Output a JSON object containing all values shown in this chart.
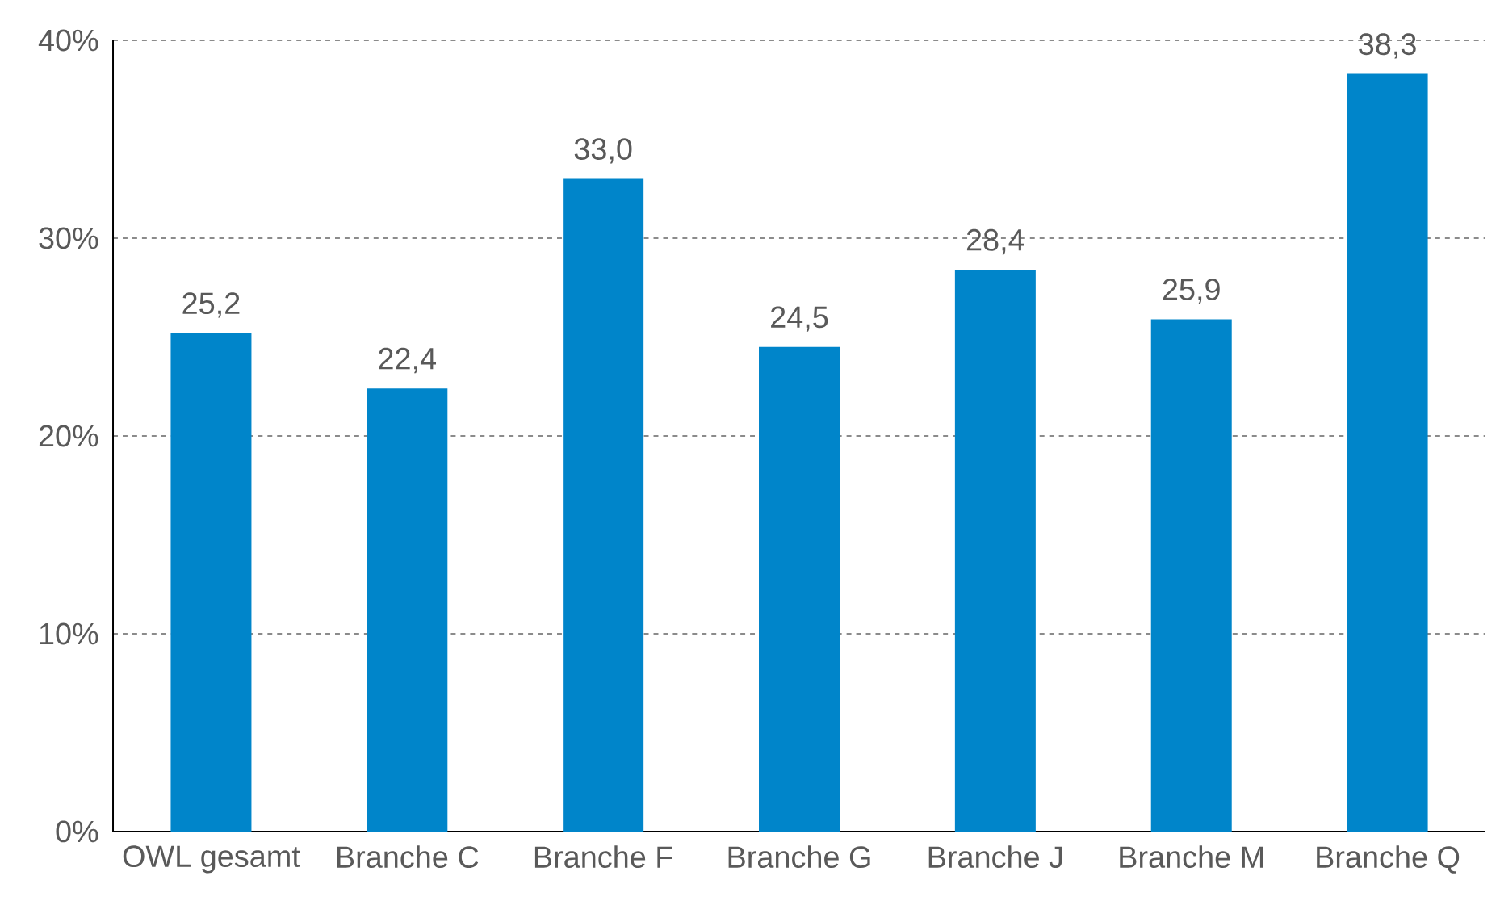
{
  "chart_data": {
    "type": "bar",
    "categories": [
      "OWL gesamt",
      "Branche C",
      "Branche F",
      "Branche G",
      "Branche J",
      "Branche M",
      "Branche Q"
    ],
    "values": [
      25.2,
      22.4,
      33.0,
      24.5,
      28.4,
      25.9,
      38.3
    ],
    "value_labels": [
      "25,2",
      "22,4",
      "33,0",
      "24,5",
      "28,4",
      "25,9",
      "38,3"
    ],
    "color": "#0085ca",
    "ylim": [
      0,
      40
    ],
    "yticks": [
      {
        "value": 0,
        "label": "0%"
      },
      {
        "value": 10,
        "label": "10%"
      },
      {
        "value": 20,
        "label": "20%"
      },
      {
        "value": 30,
        "label": "30%"
      },
      {
        "value": 40,
        "label": "40%"
      }
    ],
    "grid": "y"
  }
}
